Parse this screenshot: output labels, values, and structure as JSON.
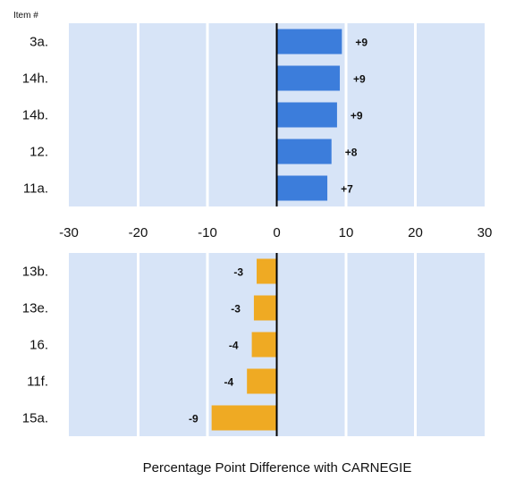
{
  "chart_data": {
    "type": "bar",
    "orientation": "horizontal",
    "header": "Item #",
    "xlabel": "Percentage Point Difference with CARNEGIE",
    "xlim": [
      -30,
      30
    ],
    "xticks": [
      "-30",
      "-20",
      "-10",
      "0",
      "10",
      "20",
      "30"
    ],
    "grid": true,
    "panels": [
      {
        "name": "top",
        "color": "#3c7ddb",
        "categories": [
          "3a.",
          "14h.",
          "14b.",
          "12.",
          "11a."
        ],
        "values": [
          9.4,
          9.1,
          8.7,
          7.9,
          7.3
        ],
        "labels": [
          "+9",
          "+9",
          "+9",
          "+8",
          "+7"
        ]
      },
      {
        "name": "bottom",
        "color": "#efaa23",
        "categories": [
          "13b.",
          "13e.",
          "16.",
          "11f.",
          "15a."
        ],
        "values": [
          -2.9,
          -3.3,
          -3.6,
          -4.3,
          -9.4
        ],
        "labels": [
          "-3",
          "-3",
          "-4",
          "-4",
          "-9"
        ]
      }
    ]
  }
}
